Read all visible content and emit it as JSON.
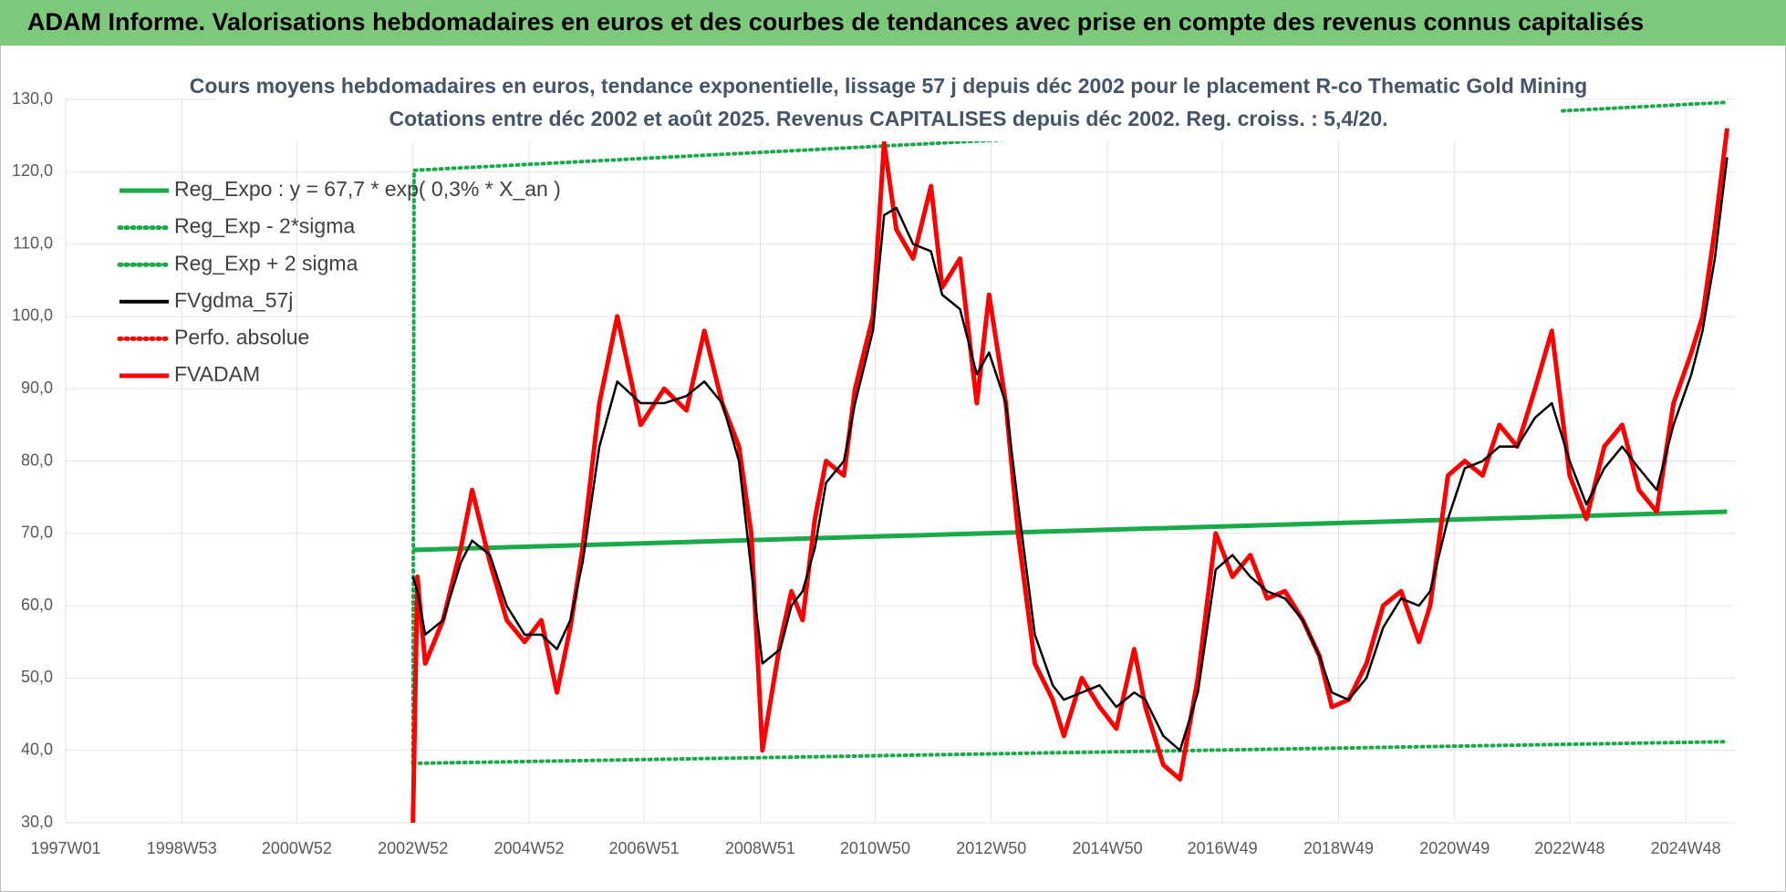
{
  "header": {
    "title": "ADAM Informe. Valorisations hebdomadaires en euros et des courbes de tendances avec prise en compte des revenus connus capitalisés"
  },
  "chart_data": {
    "type": "line",
    "title": "Cours moyens hebdomadaires en euros, tendance exponentielle, lissage 57 j depuis déc 2002 pour le placement R-co Thematic Gold Mining",
    "subtitle": "Cotations entre déc 2002 et août 2025. Revenus CAPITALISES depuis déc 2002. Reg. croiss. : 5,4/20.",
    "xlim": [
      "1997W01",
      "2025W40"
    ],
    "xticks": [
      "1997W01",
      "1998W53",
      "2000W52",
      "2002W52",
      "2004W52",
      "2006W51",
      "2008W51",
      "2010W50",
      "2012W50",
      "2014W50",
      "2016W49",
      "2018W49",
      "2020W49",
      "2022W48",
      "2024W48"
    ],
    "ylim": [
      30,
      130
    ],
    "yticks": [
      {
        "value": 30,
        "label": "30,0"
      },
      {
        "value": 40,
        "label": "40,0"
      },
      {
        "value": 50,
        "label": "50,0"
      },
      {
        "value": 60,
        "label": "60,0"
      },
      {
        "value": 70,
        "label": "70,0"
      },
      {
        "value": 80,
        "label": "80,0"
      },
      {
        "value": 90,
        "label": "90,0"
      },
      {
        "value": 100,
        "label": "100,0"
      },
      {
        "value": 110,
        "label": "110,0"
      },
      {
        "value": 120,
        "label": "120,0"
      },
      {
        "value": 130,
        "label": "130,0"
      }
    ],
    "grid": true,
    "legend": "upper left",
    "series": [
      {
        "name": "Reg_Expo : y = 67,7 * exp( 0,3% *  X_an )",
        "color": "#1aaa4a",
        "style": "solid",
        "x": [
          "2002W52",
          "2025W33"
        ],
        "values": [
          67.7,
          73.0
        ]
      },
      {
        "name": "Reg_Exp - 2*sigma",
        "color": "#1aaa4a",
        "style": "dotted",
        "x": [
          "2002W52",
          "2025W33"
        ],
        "values": [
          38.2,
          41.2
        ]
      },
      {
        "name": "Reg_Exp + 2 sigma",
        "color": "#1aaa4a",
        "style": "dotted",
        "x": [
          "2002W52",
          "2003W01",
          "2025W33"
        ],
        "values": [
          38.2,
          120.2,
          129.6
        ]
      },
      {
        "name": "FVgdma_57j",
        "color": "#000000",
        "style": "solid",
        "x": [
          "2002W52",
          "2003W04",
          "2003W11",
          "2003W27",
          "2003W43",
          "2004W01",
          "2004W17",
          "2004W32",
          "2004W48",
          "2005W11",
          "2005W25",
          "2005W37",
          "2005W48",
          "2006W11",
          "2006W27",
          "2006W48",
          "2007W17",
          "2007W37",
          "2008W01",
          "2008W17",
          "2008W32",
          "2008W43",
          "2009W01",
          "2009W17",
          "2009W27",
          "2009W37",
          "2009W48",
          "2010W06",
          "2010W22",
          "2010W32",
          "2010W48",
          "2011W06",
          "2011W17",
          "2011W32",
          "2011W48",
          "2012W06",
          "2012W22",
          "2012W37",
          "2012W48",
          "2013W11",
          "2013W22",
          "2013W37",
          "2014W01",
          "2014W11",
          "2014W27",
          "2014W43",
          "2015W06",
          "2015W22",
          "2015W32",
          "2015W48",
          "2016W11",
          "2016W27",
          "2016W43",
          "2017W06",
          "2017W22",
          "2017W37",
          "2018W01",
          "2018W17",
          "2018W32",
          "2018W43",
          "2019W06",
          "2019W22",
          "2019W37",
          "2020W01",
          "2020W17",
          "2020W27",
          "2020W43",
          "2021W06",
          "2021W22",
          "2021W37",
          "2022W01",
          "2022W17",
          "2022W32",
          "2022W48",
          "2023W11",
          "2023W27",
          "2023W43",
          "2024W06",
          "2024W22",
          "2024W37",
          "2025W01",
          "2025W11",
          "2025W22",
          "2025W33"
        ],
        "values": [
          64,
          62,
          56,
          58,
          66,
          69,
          67,
          60,
          56,
          56,
          54,
          58,
          66,
          82,
          91,
          88,
          88,
          89,
          91,
          88,
          80,
          65,
          52,
          54,
          60,
          62,
          68,
          77,
          80,
          88,
          98,
          114,
          115,
          110,
          109,
          103,
          101,
          92,
          95,
          88,
          74,
          56,
          49,
          47,
          48,
          49,
          46,
          48,
          47,
          42,
          40,
          48,
          65,
          67,
          64,
          62,
          61,
          58,
          53,
          48,
          47,
          50,
          57,
          61,
          60,
          62,
          72,
          79,
          80,
          82,
          82,
          86,
          88,
          80,
          74,
          79,
          82,
          79,
          76,
          85,
          92,
          98,
          108,
          122
        ]
      },
      {
        "name": "Perfo. absolue",
        "color": "#ff0000",
        "style": "dotted"
      },
      {
        "name": "FVADAM",
        "color": "#ff0000",
        "style": "solid",
        "x": [
          "2002W52",
          "2003W04",
          "2003W11",
          "2003W27",
          "2003W43",
          "2004W01",
          "2004W17",
          "2004W32",
          "2004W48",
          "2005W11",
          "2005W25",
          "2005W37",
          "2005W48",
          "2006W11",
          "2006W27",
          "2006W48",
          "2007W17",
          "2007W37",
          "2008W01",
          "2008W17",
          "2008W32",
          "2008W43",
          "2009W01",
          "2009W17",
          "2009W27",
          "2009W37",
          "2009W48",
          "2010W06",
          "2010W22",
          "2010W32",
          "2010W48",
          "2011W06",
          "2011W17",
          "2011W32",
          "2011W48",
          "2012W06",
          "2012W22",
          "2012W37",
          "2012W48",
          "2013W11",
          "2013W22",
          "2013W37",
          "2014W01",
          "2014W11",
          "2014W27",
          "2014W43",
          "2015W06",
          "2015W22",
          "2015W32",
          "2015W48",
          "2016W11",
          "2016W27",
          "2016W43",
          "2017W06",
          "2017W22",
          "2017W37",
          "2018W01",
          "2018W17",
          "2018W32",
          "2018W43",
          "2019W06",
          "2019W22",
          "2019W37",
          "2020W01",
          "2020W17",
          "2020W27",
          "2020W43",
          "2021W06",
          "2021W22",
          "2021W37",
          "2022W01",
          "2022W17",
          "2022W32",
          "2022W48",
          "2023W11",
          "2023W27",
          "2023W43",
          "2024W06",
          "2024W22",
          "2024W37",
          "2025W01",
          "2025W11",
          "2025W22",
          "2025W33"
        ],
        "values": [
          30,
          64,
          52,
          58,
          68,
          76,
          66,
          58,
          55,
          58,
          48,
          57,
          68,
          88,
          100,
          85,
          90,
          87,
          98,
          88,
          82,
          70,
          40,
          55,
          62,
          58,
          72,
          80,
          78,
          90,
          100,
          124,
          112,
          108,
          118,
          104,
          108,
          88,
          103,
          88,
          70,
          52,
          47,
          42,
          50,
          46,
          43,
          54,
          46,
          38,
          36,
          50,
          70,
          64,
          67,
          61,
          62,
          58,
          53,
          46,
          47,
          52,
          60,
          62,
          55,
          60,
          78,
          80,
          78,
          85,
          82,
          90,
          98,
          78,
          72,
          82,
          85,
          76,
          73,
          88,
          95,
          100,
          112,
          126
        ]
      }
    ]
  }
}
